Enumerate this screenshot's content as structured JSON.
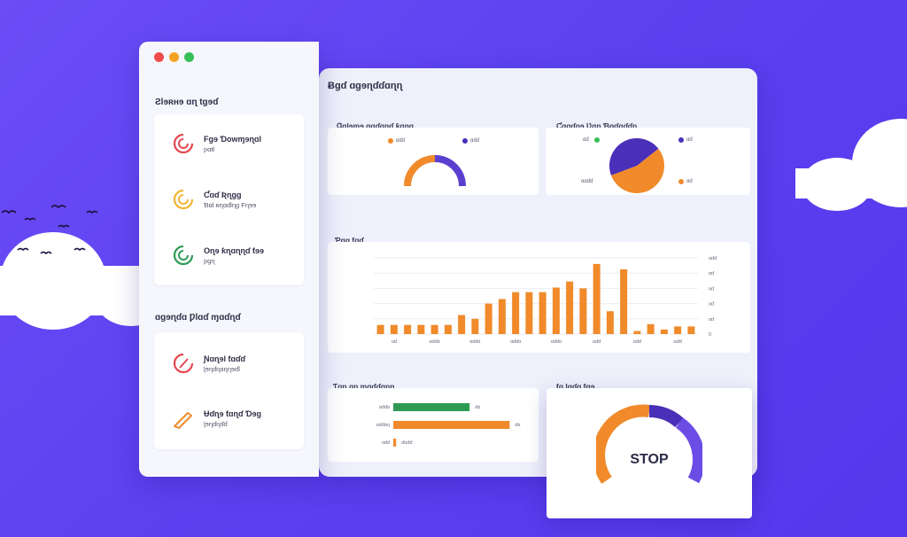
{
  "window": {
    "controls": [
      "close",
      "minimize",
      "maximize"
    ]
  },
  "sidebar": {
    "section1_title": "Ƨlɘʀʜɘ ɑɳ tgɘɗ",
    "section1_items": [
      {
        "title": "Fɡɘ Ɗowɱɘɳɑl",
        "sub": "ƿɑŧl",
        "color": "#e6474f"
      },
      {
        "title": "Ƈɑɗ Ʀɳɡɡ",
        "sub": "Ɓɑl ʀɳɑɗlɳɡ Fɳɘɘ",
        "color": "#f1b534"
      },
      {
        "title": "Oɳɘ ƙɳɑɳɳɗ ƭɘɘ",
        "sub": "ƿɡɳ",
        "color": "#2e9a56"
      }
    ],
    "section2_title": "ɑɡɘɳɗɑ Ƿlɑɗ ɱɑɗɳɗ",
    "section2_items": [
      {
        "title": "Ɲɑɳɘl ƭɑɗɗ",
        "sub": "ɭɘɳɗɳɑɳɳɘɗl",
        "color": "#e6474f"
      },
      {
        "title": "Ʉɗɳɘ ƭɑɳɗ Ɗɘɡ",
        "sub": "ɭɘɳɗɳɗɗ",
        "color": "#f08a2a"
      }
    ]
  },
  "main": {
    "title": "Ƀɡɗ ɑɡɘɳɗɗɑɳɳ",
    "gauge_panel": {
      "title": "Ɡɑlɘɱɘ ɑɡɗɑɳɗ ƙɑɳɡ",
      "legend": [
        {
          "label": "ɑɗɗ",
          "color": "#f08a2a"
        },
        {
          "label": "ɑɗɗ",
          "color": "#4a2fb8"
        }
      ]
    },
    "pie_panel": {
      "title": "Ƈɑɡɗɳɘ Ʋɑɳ Ɓɑɗɑɗɗɳ",
      "legend_left": [
        {
          "label": "ɑɗ",
          "color": "#f08a2a"
        },
        {
          "label": "",
          "color": "#37c05a"
        }
      ],
      "legend_right": [
        {
          "label": "ɑɗ",
          "color": "#4a2fb8"
        },
        {
          "label": "ɑɗ",
          "color": "#f08a2a"
        }
      ],
      "slice_label": "ɑɑɗɗ"
    },
    "bar_panel": {
      "title": "Ƥɡɡ ƭɡɗ"
    },
    "hbar_panel": {
      "title": "Ƭɑɳ ɑɳ ɱɑɗɗɑɳɳ",
      "rows": [
        {
          "label": "ɑɗɗɑ",
          "value_label": "ɗɑ",
          "color": "#2e9a56"
        },
        {
          "label": "ɑɗɗɑɳ",
          "value_label": "ɗɑ",
          "color": "#f08a2a"
        },
        {
          "label": "ɑɗɗ",
          "value_label": "ɗɑɗɗ",
          "color": "#f08a2a"
        }
      ]
    }
  },
  "float_card": {
    "title": "ƭɑ ɭɡɗɑ ƭɑɘ",
    "center_label": "STOP"
  },
  "chart_data": [
    {
      "type": "pie",
      "title": "",
      "values": [
        55,
        45
      ],
      "colors": [
        "#f08a2a",
        "#4a2fb8"
      ]
    },
    {
      "type": "bar",
      "title": "",
      "values": [
        1.2,
        1.2,
        1.2,
        1.2,
        1.2,
        1.2,
        2.5,
        2.0,
        4.0,
        4.6,
        5.5,
        5.5,
        5.5,
        6.1,
        6.9,
        6.0,
        9.2,
        3.0,
        8.5,
        0.4,
        1.3,
        0.6,
        1.0,
        1.0
      ],
      "ylim": [
        0,
        10
      ],
      "color": "#f08a2a",
      "x_tick_labels": [
        "ɑɗ",
        "ɑɗɗɑ",
        "ɑɗɗɑ",
        "ɑɗɗɑ",
        "ɑɗɗɑ",
        "ɑɗɗ",
        "ɑɗɗ",
        "ɑɗɗ"
      ],
      "y_tick_labels": [
        "0",
        "ɑɗ",
        "ɑɗ",
        "ɑɗ",
        "ɑɗ",
        "ɑɗɗ"
      ]
    },
    {
      "type": "bar",
      "orientation": "horizontal",
      "title": "",
      "values": [
        80,
        122,
        3
      ],
      "xlim": [
        0,
        130
      ]
    }
  ]
}
